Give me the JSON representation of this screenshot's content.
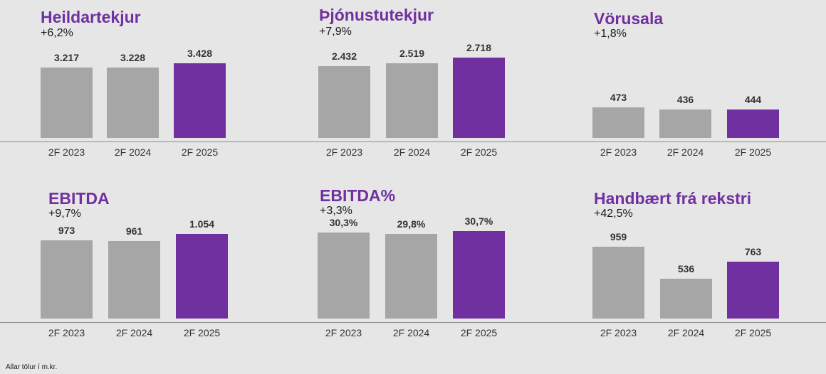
{
  "colors": {
    "base": "#a6a6a6",
    "highlight": "#7030a0",
    "title": "#7030a0"
  },
  "footnote": "Allar tölur í m.kr.",
  "chart_data": [
    {
      "type": "bar",
      "title": "Heildartekjur",
      "subtitle": "+6,2%",
      "categories": [
        "2F 2023",
        "2F 2024",
        "2F 2025"
      ],
      "values": [
        3217,
        3228,
        3428
      ],
      "labels": [
        "3.217",
        "3.228",
        "3.428"
      ],
      "highlight_index": 2
    },
    {
      "type": "bar",
      "title": "Þjónustutekjur",
      "subtitle": "+7,9%",
      "categories": [
        "2F 2023",
        "2F 2024",
        "2F 2025"
      ],
      "values": [
        2432,
        2519,
        2718
      ],
      "labels": [
        "2.432",
        "2.519",
        "2.718"
      ],
      "highlight_index": 2
    },
    {
      "type": "bar",
      "title": "Vörusala",
      "subtitle": "+1,8%",
      "categories": [
        "2F 2023",
        "2F 2024",
        "2F 2025"
      ],
      "values": [
        473,
        436,
        444
      ],
      "labels": [
        "473",
        "436",
        "444"
      ],
      "highlight_index": 2
    },
    {
      "type": "bar",
      "title": "EBITDA",
      "subtitle": "+9,7%",
      "categories": [
        "2F 2023",
        "2F 2024",
        "2F 2025"
      ],
      "values": [
        973,
        961,
        1054
      ],
      "labels": [
        "973",
        "961",
        "1.054"
      ],
      "highlight_index": 2
    },
    {
      "type": "bar",
      "title": "EBITDA%",
      "subtitle": "+3,3%",
      "categories": [
        "2F 2023",
        "2F 2024",
        "2F 2025"
      ],
      "values": [
        30.3,
        29.8,
        30.7
      ],
      "labels": [
        "30,3%",
        "29,8%",
        "30,7%"
      ],
      "highlight_index": 2
    },
    {
      "type": "bar",
      "title": "Handbært frá rekstri",
      "subtitle": "+42,5%",
      "categories": [
        "2F 2023",
        "2F 2024",
        "2F 2025"
      ],
      "values": [
        959,
        536,
        763
      ],
      "labels": [
        "959",
        "536",
        "763"
      ],
      "highlight_index": 2
    }
  ]
}
